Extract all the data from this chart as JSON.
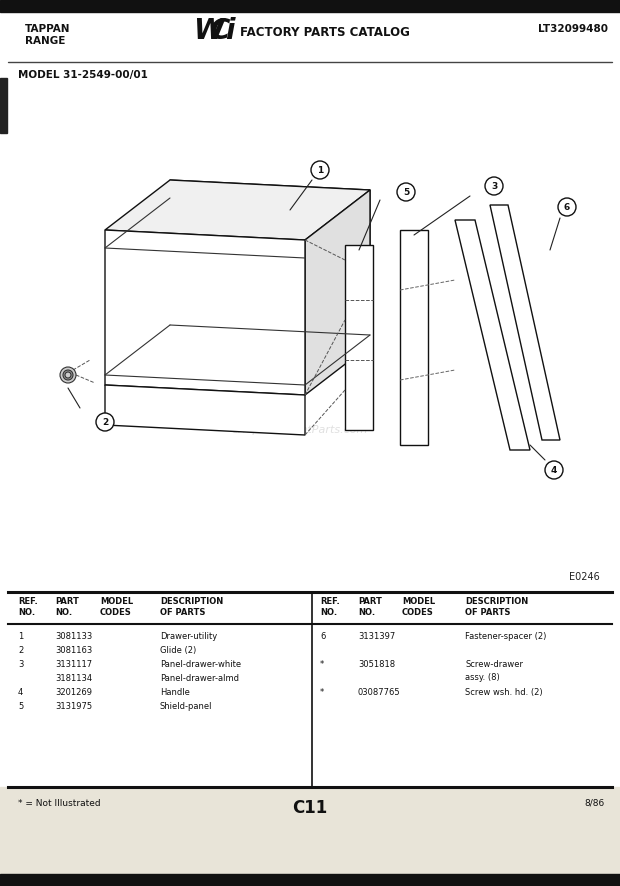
{
  "title_left1": "TAPPAN",
  "title_left2": "RANGE",
  "title_right": "LT32099480",
  "model": "MODEL 31-2549-00/01",
  "diagram_label": "E0246",
  "page_label": "C11",
  "not_illustrated": "* = Not Illustrated",
  "page_date": "8/86",
  "watermark": "eReplacementParts.com",
  "bg_color": "#ffffff",
  "table_rows_left": [
    [
      "1",
      "3081133",
      "",
      "Drawer-utility"
    ],
    [
      "2",
      "3081163",
      "",
      "Glide (2)"
    ],
    [
      "3",
      "3131117",
      "",
      "Panel-drawer-white"
    ],
    [
      "",
      "3181134",
      "",
      "Panel-drawer-almd"
    ],
    [
      "4",
      "3201269",
      "",
      "Handle"
    ],
    [
      "5",
      "3131975",
      "",
      "Shield-panel"
    ]
  ],
  "table_rows_right": [
    [
      "6",
      "3131397",
      "",
      "Fastener-spacer (2)"
    ],
    [
      "*",
      "3051818",
      "",
      "Screw-drawer\nassy. (8)"
    ],
    [
      "*",
      "03087765",
      "",
      "Screw wsh. hd. (2)"
    ]
  ]
}
